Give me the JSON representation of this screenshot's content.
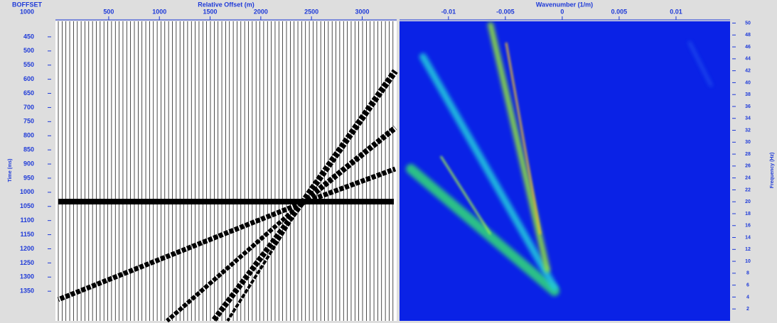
{
  "chart_data": [
    {
      "type": "wiggle",
      "corner_labels": [
        "BOFFSET",
        "1000"
      ],
      "x_label": "Relative Offset (m)",
      "y_label": "Time (ms)",
      "xlim": [
        -25,
        3340
      ],
      "xticks": [
        500,
        1000,
        1500,
        2000,
        2500,
        3000
      ],
      "ylim": [
        395,
        1455
      ],
      "yticks": [
        450,
        500,
        550,
        600,
        650,
        700,
        750,
        800,
        850,
        900,
        950,
        1000,
        1050,
        1100,
        1150,
        1200,
        1250,
        1300,
        1350
      ]
    },
    {
      "type": "spectrum",
      "x_label": "Wavenumber (1/m)",
      "y_label": "Frequency (Hz)",
      "xlim": [
        -0.0143,
        0.01475
      ],
      "xticks": [
        -0.01,
        -0.005,
        0,
        0.005,
        0.01
      ],
      "ylim": [
        0,
        50.3
      ],
      "yticks": [
        2,
        4,
        6,
        8,
        10,
        12,
        14,
        16,
        18,
        20,
        22,
        24,
        26,
        28,
        30,
        32,
        34,
        36,
        38,
        40,
        42,
        44,
        46,
        48,
        50
      ]
    }
  ]
}
